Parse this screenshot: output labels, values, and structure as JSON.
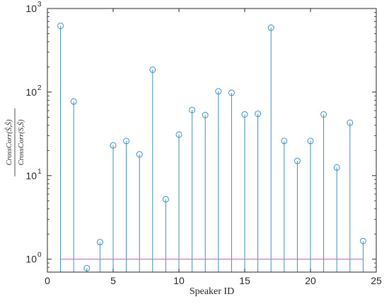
{
  "chart_data": {
    "type": "stem",
    "xlabel": "Speaker ID",
    "ylabel": {
      "numerator": "CrossCorr(Ŝ,Ŝ)",
      "denominator": "CrossCorr(S,Ŝ)"
    },
    "x_ticks": [
      "0",
      "5",
      "10",
      "15",
      "20",
      "25"
    ],
    "y_ticks": [
      {
        "base": "10",
        "exp": "0"
      },
      {
        "base": "10",
        "exp": "1"
      },
      {
        "base": "10",
        "exp": "2"
      },
      {
        "base": "10",
        "exp": "3"
      }
    ],
    "xlim": [
      0,
      25
    ],
    "ylim": [
      0.7,
      1000
    ],
    "y_scale": "log",
    "grid": false,
    "colors": {
      "stem": "#3a8fbf",
      "reference_line": "#d36fd6"
    },
    "x": [
      1,
      2,
      3,
      4,
      5,
      6,
      7,
      8,
      9,
      10,
      11,
      12,
      13,
      14,
      15,
      16,
      17,
      18,
      19,
      20,
      21,
      22,
      23,
      24
    ],
    "values": [
      620,
      77,
      0.78,
      1.6,
      23,
      26,
      18,
      185,
      5.2,
      31,
      61,
      53,
      102,
      98,
      54,
      55,
      590,
      26,
      15,
      26,
      54,
      12.5,
      43,
      1.65
    ],
    "reference_line": {
      "y": 1,
      "x_range": [
        1,
        24
      ]
    }
  }
}
